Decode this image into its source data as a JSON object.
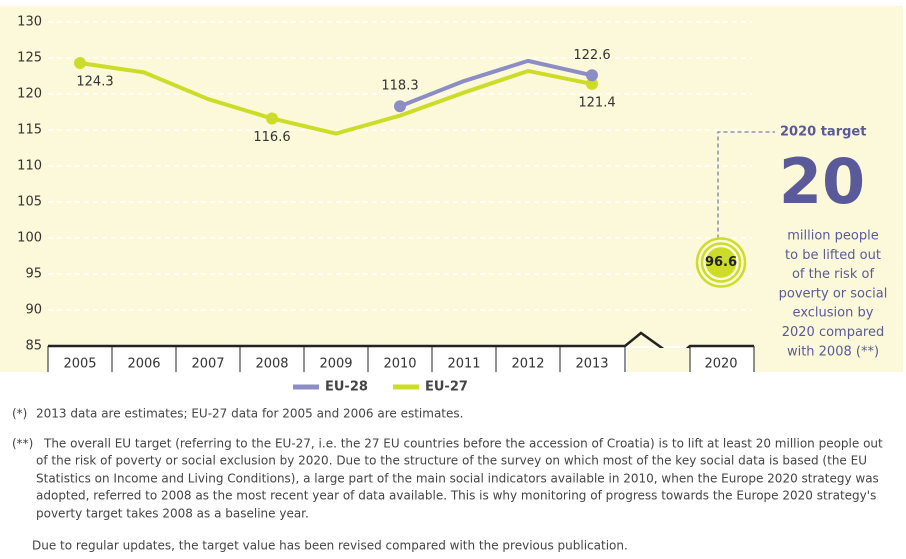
{
  "chart_data": {
    "type": "line",
    "categories": [
      "2005",
      "2006",
      "2007",
      "2008",
      "2009",
      "2010",
      "2011",
      "2012",
      "2013",
      "2020"
    ],
    "series": [
      {
        "name": "EU-28",
        "color": "#8d8dc6",
        "values": [
          null,
          null,
          null,
          null,
          null,
          118.3,
          121.8,
          124.6,
          122.6,
          null
        ],
        "labeled": [
          5,
          8
        ]
      },
      {
        "name": "EU-27",
        "color": "#cddc29",
        "values": [
          124.3,
          123.0,
          119.3,
          116.6,
          114.5,
          117.0,
          120.2,
          123.2,
          121.4,
          null
        ],
        "labeled": [
          0,
          3,
          8
        ]
      }
    ],
    "target": {
      "category": 9,
      "value": 96.6
    },
    "ylim": [
      85,
      130
    ],
    "yticks": [
      85,
      90,
      95,
      100,
      105,
      110,
      115,
      120,
      125,
      130
    ],
    "grid": true,
    "annotation": {
      "heading": "2020 target",
      "big": "20",
      "lines": [
        "million people",
        "to be lifted out",
        "of the risk of",
        "poverty or social",
        "exclusion by",
        "2020 compared",
        "with 2008 (**)"
      ]
    },
    "footnotes": [
      {
        "marker": "(*)",
        "lines": [
          "2013 data are estimates; EU-27 data for 2005 and 2006 are estimates."
        ]
      },
      {
        "marker": "(**)",
        "lines": [
          "The overall EU target (referring to the EU-27, i.e. the 27 EU countries before the accession of Croatia) is to lift at least 20 million people out",
          "of the risk of poverty or social exclusion by 2020. Due to the structure of the survey on which most of the key social data is based (the EU",
          "Statistics on Income and Living Conditions), a large part of the main social indicators available in 2010, when the Europe 2020 strategy was",
          "adopted, referred to 2008 as the most recent year of data available. This is why monitoring of progress towards the Europe 2020 strategy's",
          "poverty target takes 2008 as a baseline year."
        ]
      },
      {
        "lines": [
          "Due to regular updates, the target value has been revised compared with the previous publication."
        ]
      }
    ]
  }
}
